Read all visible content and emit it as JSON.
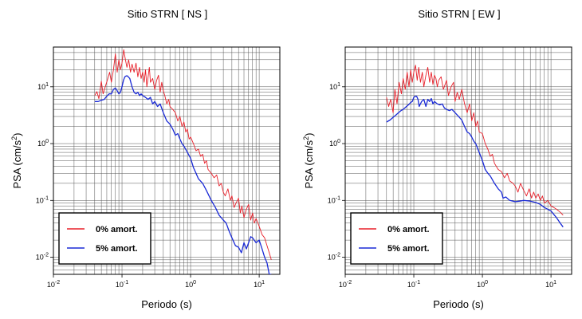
{
  "chart_data": [
    {
      "type": "line",
      "title": "Sitio STRN [ NS ]",
      "xlabel": "Periodo (s)",
      "ylabel_base": "PSA (cm/s",
      "ylabel_sup": "2",
      "ylabel_close": ")",
      "xscale": "log",
      "yscale": "log",
      "xlim": [
        0.01,
        20
      ],
      "ylim": [
        0.005,
        50
      ],
      "grid": true,
      "legend_position": "bottom-left",
      "x_ticks": [
        {
          "base": "10",
          "exp": "-2",
          "value": 0.01
        },
        {
          "base": "10",
          "exp": "-1",
          "value": 0.1
        },
        {
          "base": "10",
          "exp": "0",
          "value": 1
        },
        {
          "base": "10",
          "exp": "1",
          "value": 10
        }
      ],
      "y_ticks": [
        {
          "base": "10",
          "exp": "-2",
          "value": 0.01
        },
        {
          "base": "10",
          "exp": "-1",
          "value": 0.1
        },
        {
          "base": "10",
          "exp": "0",
          "value": 1
        },
        {
          "base": "10",
          "exp": "1",
          "value": 10
        }
      ],
      "series": [
        {
          "name": "0% amort.",
          "color": "#e8202a",
          "x": [
            0.04,
            0.043,
            0.046,
            0.05,
            0.053,
            0.057,
            0.061,
            0.066,
            0.07,
            0.075,
            0.08,
            0.085,
            0.09,
            0.095,
            0.1,
            0.106,
            0.112,
            0.118,
            0.125,
            0.133,
            0.14,
            0.15,
            0.16,
            0.17,
            0.18,
            0.19,
            0.2,
            0.21,
            0.22,
            0.23,
            0.25,
            0.26,
            0.28,
            0.3,
            0.32,
            0.34,
            0.36,
            0.38,
            0.4,
            0.42,
            0.45,
            0.48,
            0.5,
            0.55,
            0.6,
            0.65,
            0.7,
            0.75,
            0.8,
            0.85,
            0.9,
            0.95,
            1.0,
            1.1,
            1.2,
            1.3,
            1.4,
            1.5,
            1.6,
            1.7,
            1.8,
            2.0,
            2.2,
            2.4,
            2.6,
            2.8,
            3.0,
            3.2,
            3.5,
            3.8,
            4.0,
            4.3,
            4.6,
            5.0,
            5.3,
            5.6,
            6.0,
            6.5,
            7.0,
            7.5,
            8.0,
            8.5,
            9.0,
            10.0,
            11.0,
            12.0,
            13.0,
            14.0,
            15.0
          ],
          "y": [
            7.0,
            8.2,
            6.2,
            12.5,
            7.5,
            10.0,
            13.0,
            18.0,
            12.0,
            20.0,
            38.0,
            18.0,
            30.0,
            20.0,
            26.0,
            45.0,
            30.0,
            22.0,
            30.0,
            18.0,
            25.0,
            18.0,
            26.0,
            15.0,
            22.0,
            14.0,
            18.0,
            12.0,
            20.0,
            10.0,
            22.0,
            12.0,
            14.0,
            9.0,
            13.0,
            16.0,
            8.0,
            12.0,
            8.5,
            7.0,
            5.0,
            6.0,
            4.5,
            4.0,
            3.5,
            2.5,
            3.0,
            2.0,
            2.4,
            1.6,
            1.8,
            1.2,
            1.3,
            1.0,
            0.75,
            0.8,
            0.6,
            0.65,
            0.45,
            0.5,
            0.35,
            0.3,
            0.25,
            0.28,
            0.18,
            0.2,
            0.14,
            0.12,
            0.16,
            0.1,
            0.12,
            0.075,
            0.09,
            0.11,
            0.06,
            0.08,
            0.05,
            0.07,
            0.085,
            0.045,
            0.06,
            0.04,
            0.048,
            0.035,
            0.025,
            0.022,
            0.016,
            0.012,
            0.009
          ]
        },
        {
          "name": "5% amort.",
          "color": "#1a2ad6",
          "x": [
            0.04,
            0.045,
            0.05,
            0.055,
            0.06,
            0.065,
            0.07,
            0.075,
            0.08,
            0.085,
            0.09,
            0.095,
            0.1,
            0.105,
            0.11,
            0.115,
            0.12,
            0.13,
            0.14,
            0.15,
            0.16,
            0.17,
            0.18,
            0.19,
            0.2,
            0.22,
            0.24,
            0.26,
            0.28,
            0.3,
            0.33,
            0.36,
            0.4,
            0.45,
            0.5,
            0.55,
            0.6,
            0.65,
            0.7,
            0.75,
            0.8,
            0.9,
            1.0,
            1.1,
            1.2,
            1.3,
            1.5,
            1.7,
            2.0,
            2.3,
            2.6,
            3.0,
            3.3,
            3.6,
            4.0,
            4.5,
            5.0,
            5.5,
            6.0,
            6.5,
            7.0,
            7.5,
            8.0,
            9.0,
            10.0,
            11.0,
            12.0,
            13.0,
            14.0,
            15.0
          ],
          "y": [
            5.5,
            5.5,
            5.8,
            6.0,
            6.8,
            7.5,
            7.5,
            9.0,
            9.5,
            8.5,
            7.5,
            8.0,
            10.0,
            13.0,
            15.0,
            15.5,
            15.5,
            14.0,
            10.0,
            8.0,
            7.5,
            8.0,
            7.0,
            7.5,
            7.0,
            6.5,
            6.0,
            6.5,
            5.0,
            5.5,
            4.5,
            5.0,
            3.5,
            2.5,
            2.2,
            1.8,
            1.4,
            1.5,
            1.2,
            1.0,
            0.9,
            0.7,
            0.55,
            0.38,
            0.3,
            0.24,
            0.2,
            0.15,
            0.1,
            0.075,
            0.055,
            0.045,
            0.04,
            0.03,
            0.022,
            0.016,
            0.015,
            0.012,
            0.018,
            0.014,
            0.018,
            0.023,
            0.022,
            0.018,
            0.02,
            0.014,
            0.01,
            0.008,
            0.005,
            0.005
          ]
        }
      ]
    },
    {
      "type": "line",
      "title": "Sitio STRN [ EW ]",
      "xlabel": "Periodo (s)",
      "ylabel_base": "PSA (cm/s",
      "ylabel_sup": "2",
      "ylabel_close": ")",
      "xscale": "log",
      "yscale": "log",
      "xlim": [
        0.01,
        20
      ],
      "ylim": [
        0.005,
        50
      ],
      "grid": true,
      "legend_position": "bottom-left",
      "x_ticks": [
        {
          "base": "10",
          "exp": "-2",
          "value": 0.01
        },
        {
          "base": "10",
          "exp": "-1",
          "value": 0.1
        },
        {
          "base": "10",
          "exp": "0",
          "value": 1
        },
        {
          "base": "10",
          "exp": "1",
          "value": 10
        }
      ],
      "y_ticks": [
        {
          "base": "10",
          "exp": "-2",
          "value": 0.01
        },
        {
          "base": "10",
          "exp": "-1",
          "value": 0.1
        },
        {
          "base": "10",
          "exp": "0",
          "value": 1
        },
        {
          "base": "10",
          "exp": "1",
          "value": 10
        }
      ],
      "series": [
        {
          "name": "0% amort.",
          "color": "#e8202a",
          "x": [
            0.04,
            0.043,
            0.046,
            0.05,
            0.053,
            0.057,
            0.061,
            0.066,
            0.07,
            0.075,
            0.08,
            0.085,
            0.09,
            0.095,
            0.1,
            0.106,
            0.112,
            0.118,
            0.125,
            0.133,
            0.14,
            0.15,
            0.16,
            0.17,
            0.18,
            0.19,
            0.2,
            0.21,
            0.22,
            0.23,
            0.25,
            0.27,
            0.3,
            0.32,
            0.35,
            0.38,
            0.4,
            0.43,
            0.46,
            0.5,
            0.55,
            0.6,
            0.65,
            0.7,
            0.75,
            0.8,
            0.85,
            0.9,
            1.0,
            1.1,
            1.2,
            1.3,
            1.4,
            1.5,
            1.7,
            1.9,
            2.1,
            2.3,
            2.5,
            2.8,
            3.0,
            3.3,
            3.6,
            4.0,
            4.4,
            4.8,
            5.2,
            5.6,
            6.0,
            6.5,
            7.0,
            7.5,
            8.0,
            9.0,
            10.0,
            11.0,
            12.0,
            13.0,
            14.0,
            15.0
          ],
          "y": [
            6.5,
            4.5,
            6.0,
            3.5,
            9.0,
            5.0,
            12.0,
            7.5,
            14.0,
            9.0,
            18.0,
            10.0,
            20.0,
            12.0,
            18.0,
            24.0,
            13.0,
            22.0,
            12.0,
            18.0,
            10.0,
            16.0,
            22.0,
            12.0,
            18.0,
            11.0,
            16.0,
            14.0,
            10.0,
            13.0,
            15.0,
            9.0,
            13.0,
            7.0,
            10.0,
            12.0,
            5.5,
            8.0,
            6.0,
            9.0,
            5.0,
            3.5,
            5.0,
            2.5,
            3.5,
            2.0,
            2.5,
            1.6,
            1.5,
            1.0,
            0.8,
            0.6,
            0.65,
            0.45,
            0.35,
            0.32,
            0.25,
            0.3,
            0.22,
            0.2,
            0.18,
            0.14,
            0.2,
            0.15,
            0.12,
            0.16,
            0.11,
            0.14,
            0.11,
            0.13,
            0.1,
            0.12,
            0.09,
            0.1,
            0.08,
            0.075,
            0.07,
            0.065,
            0.06,
            0.055
          ]
        },
        {
          "name": "5% amort.",
          "color": "#1a2ad6",
          "x": [
            0.04,
            0.045,
            0.05,
            0.055,
            0.06,
            0.065,
            0.07,
            0.075,
            0.08,
            0.085,
            0.09,
            0.095,
            0.1,
            0.105,
            0.11,
            0.115,
            0.12,
            0.13,
            0.14,
            0.15,
            0.16,
            0.17,
            0.18,
            0.19,
            0.2,
            0.22,
            0.24,
            0.26,
            0.28,
            0.3,
            0.33,
            0.36,
            0.4,
            0.45,
            0.5,
            0.55,
            0.6,
            0.65,
            0.7,
            0.75,
            0.8,
            0.9,
            1.0,
            1.1,
            1.2,
            1.3,
            1.5,
            1.7,
            1.9,
            2.0,
            2.2,
            2.5,
            3.0,
            3.5,
            4.0,
            5.0,
            6.0,
            7.0,
            8.0,
            10.0,
            12.0,
            14.0,
            15.0
          ],
          "y": [
            2.4,
            2.6,
            2.9,
            3.2,
            3.5,
            3.8,
            4.0,
            4.3,
            4.6,
            4.9,
            5.3,
            5.5,
            6.5,
            6.8,
            6.8,
            6.0,
            4.5,
            5.5,
            6.0,
            4.5,
            6.0,
            5.5,
            6.2,
            5.0,
            5.5,
            5.0,
            4.8,
            5.0,
            4.2,
            4.0,
            3.8,
            4.0,
            3.5,
            3.0,
            2.6,
            2.0,
            1.6,
            1.5,
            1.3,
            1.1,
            1.0,
            0.7,
            0.5,
            0.35,
            0.3,
            0.27,
            0.2,
            0.16,
            0.14,
            0.11,
            0.115,
            0.1,
            0.095,
            0.097,
            0.1,
            0.097,
            0.092,
            0.085,
            0.075,
            0.065,
            0.05,
            0.038,
            0.034
          ]
        }
      ]
    }
  ]
}
